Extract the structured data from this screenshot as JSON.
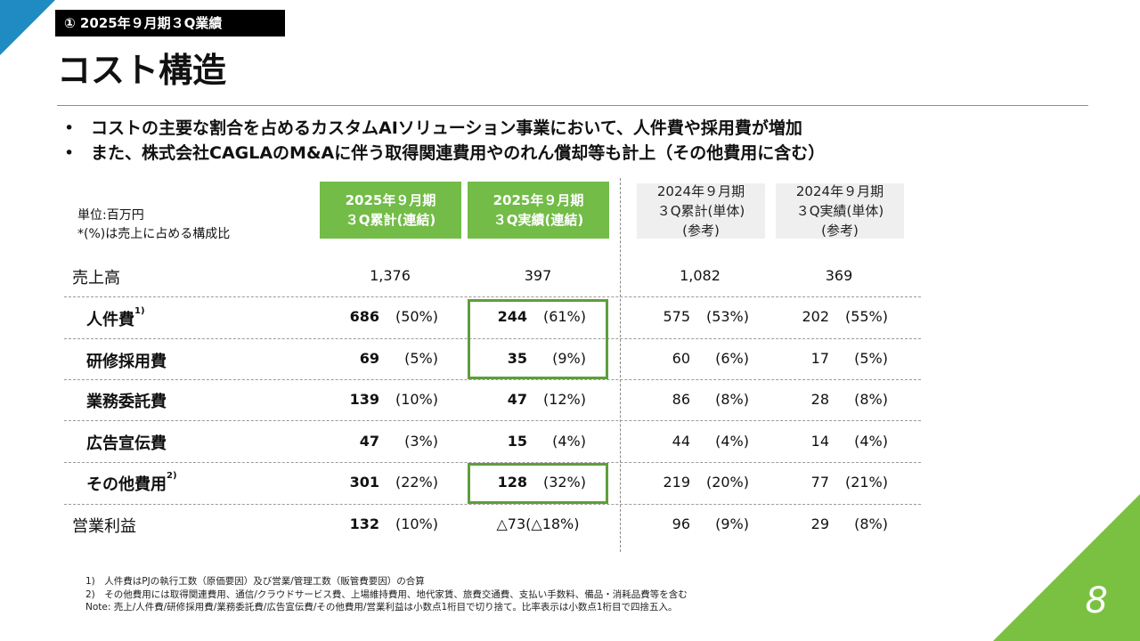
{
  "section_tag": "① 2025年９月期３Q業績",
  "page_title": "コスト構造",
  "bullets": [
    "コストの主要な割合を占めるカスタムAIソリューション事業において、人件費や採用費が増加",
    "また、株式会社CAGLAのM&Aに伴う取得関連費用やのれん償却等も計上（その他費用に含む）"
  ],
  "unit_note": {
    "line1": "単位:百万円",
    "line2": "*(%)は売上に占める構成比"
  },
  "columns": [
    {
      "line1": "2025年９月期",
      "line2": "３Q累計(連結)",
      "line3": ""
    },
    {
      "line1": "2025年９月期",
      "line2": "３Q実績(連結)",
      "line3": ""
    },
    {
      "line1": "2024年９月期",
      "line2": "３Q累計(単体)",
      "line3": "(参考)"
    },
    {
      "line1": "2024年９月期",
      "line2": "３Q実績(単体)",
      "line3": "(参考)"
    }
  ],
  "rows": {
    "sales": {
      "label": "売上高",
      "values": [
        "1,376",
        "397",
        "1,082",
        "369"
      ]
    },
    "personnel": {
      "label": "人件費",
      "note": "1)",
      "cells": [
        [
          "686",
          "(50%)"
        ],
        [
          "244",
          "(61%)"
        ],
        [
          "575",
          "(53%)"
        ],
        [
          "202",
          "(55%)"
        ]
      ]
    },
    "training": {
      "label": "研修採用費",
      "note": "",
      "cells": [
        [
          "69",
          "(5%)"
        ],
        [
          "35",
          "(9%)"
        ],
        [
          "60",
          "(6%)"
        ],
        [
          "17",
          "(5%)"
        ]
      ]
    },
    "outsourcing": {
      "label": "業務委託費",
      "note": "",
      "cells": [
        [
          "139",
          "(10%)"
        ],
        [
          "47",
          "(12%)"
        ],
        [
          "86",
          "(8%)"
        ],
        [
          "28",
          "(8%)"
        ]
      ]
    },
    "advertising": {
      "label": "広告宣伝費",
      "note": "",
      "cells": [
        [
          "47",
          "(3%)"
        ],
        [
          "15",
          "(4%)"
        ],
        [
          "44",
          "(4%)"
        ],
        [
          "14",
          "(4%)"
        ]
      ]
    },
    "other": {
      "label": "その他費用",
      "note": "2)",
      "cells": [
        [
          "301",
          "(22%)"
        ],
        [
          "128",
          "(32%)"
        ],
        [
          "219",
          "(20%)"
        ],
        [
          "77",
          "(21%)"
        ]
      ]
    },
    "operating_profit": {
      "label": "営業利益",
      "cells": [
        [
          "132",
          "(10%)"
        ],
        [
          "",
          "△73(△18%)"
        ],
        [
          "96",
          "(9%)"
        ],
        [
          "29",
          "(8%)"
        ]
      ]
    }
  },
  "footnotes": [
    "1)　人件費はPJの執行工数（原価要因）及び営業/管理工数（販管費要因）の合算",
    "2)　その他費用には取得関連費用、通信/クラウドサービス費、上場維持費用、地代家賃、旅費交通費、支払い手数料、備品・消耗品費等を含む",
    "Note: 売上/人件費/研修採用費/業務委託費/広告宣伝費/その他費用/営業利益は小数点1桁目で切り捨て。比率表示は小数点1桁目で四捨五入。"
  ],
  "page_number": "8",
  "colors": {
    "accent_green": "#72bc47",
    "corner_blue": "#1f8bc2",
    "corner_green": "#7ac142",
    "highlight_border": "#5e9e3a"
  }
}
